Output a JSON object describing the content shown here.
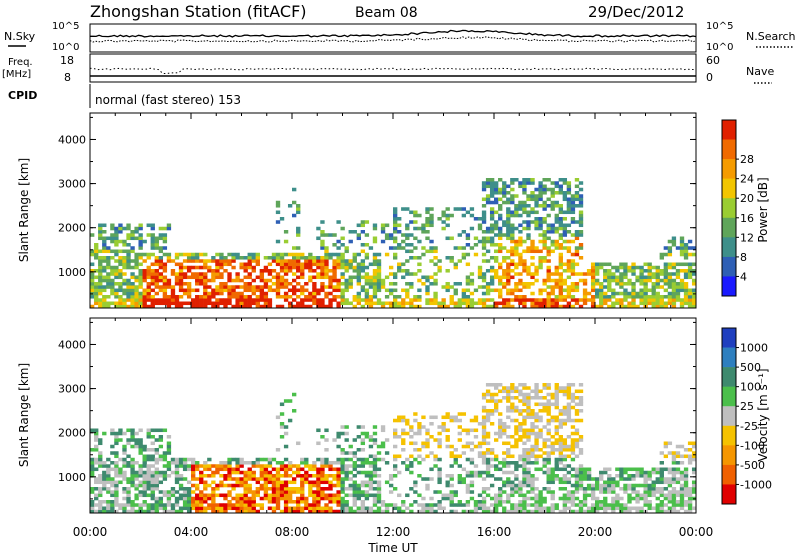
{
  "header": {
    "station": "Zhongshan Station (fitACF)",
    "beam": "Beam 08",
    "date": "29/Dec/2012"
  },
  "summary": {
    "nsky_label": "N.Sky",
    "nsky_ticks": [
      "10^5",
      "10^0"
    ],
    "nsearch_label": "N.Search",
    "nsearch_ticks": [
      "10^5",
      "10^0"
    ],
    "freq_label_1": "Freq.",
    "freq_label_2": "[MHz]",
    "freq_ticks": [
      "18",
      "8"
    ],
    "nave_label": "Nave",
    "nave_ticks": [
      "60",
      "0"
    ],
    "cpid_label": "CPID",
    "cpid_text": "normal (fast stereo) 153"
  },
  "chart_data": [
    {
      "type": "heatmap",
      "name": "power",
      "ylabel": "Slant Range [km]",
      "xlabel": "",
      "yticks": [
        "1000",
        "2000",
        "3000",
        "4000"
      ],
      "ylim": [
        180,
        4600
      ],
      "xlim": [
        0,
        24
      ],
      "colorbar_label": "Power [dB]",
      "colorbar_ticks": [
        "4",
        "8",
        "12",
        "16",
        "20",
        "24",
        "28"
      ],
      "colorbar_colors": [
        "#1a1aff",
        "#2e5fb5",
        "#3e8f8a",
        "#5fa55a",
        "#9acd32",
        "#f2c500",
        "#f59b00",
        "#f06a00",
        "#e02000"
      ]
    },
    {
      "type": "heatmap",
      "name": "velocity",
      "ylabel": "Slant Range [km]",
      "xlabel": "Time UT",
      "yticks": [
        "1000",
        "2000",
        "3000",
        "4000"
      ],
      "ylim": [
        180,
        4600
      ],
      "xlim": [
        0,
        24
      ],
      "xticks": [
        "00:00",
        "04:00",
        "08:00",
        "12:00",
        "16:00",
        "20:00",
        "00:00"
      ],
      "colorbar_label": "Velocity [m s⁻¹]",
      "colorbar_ticks": [
        "1000",
        "500",
        "100",
        "25",
        "-25",
        "-100",
        "-500",
        "-1000"
      ],
      "colorbar_colors": [
        "#1f3fbf",
        "#2e7fbf",
        "#3e8a6e",
        "#4bbf4b",
        "#bfbfbf",
        "#f5c200",
        "#f59600",
        "#f06000",
        "#e00000"
      ]
    }
  ]
}
